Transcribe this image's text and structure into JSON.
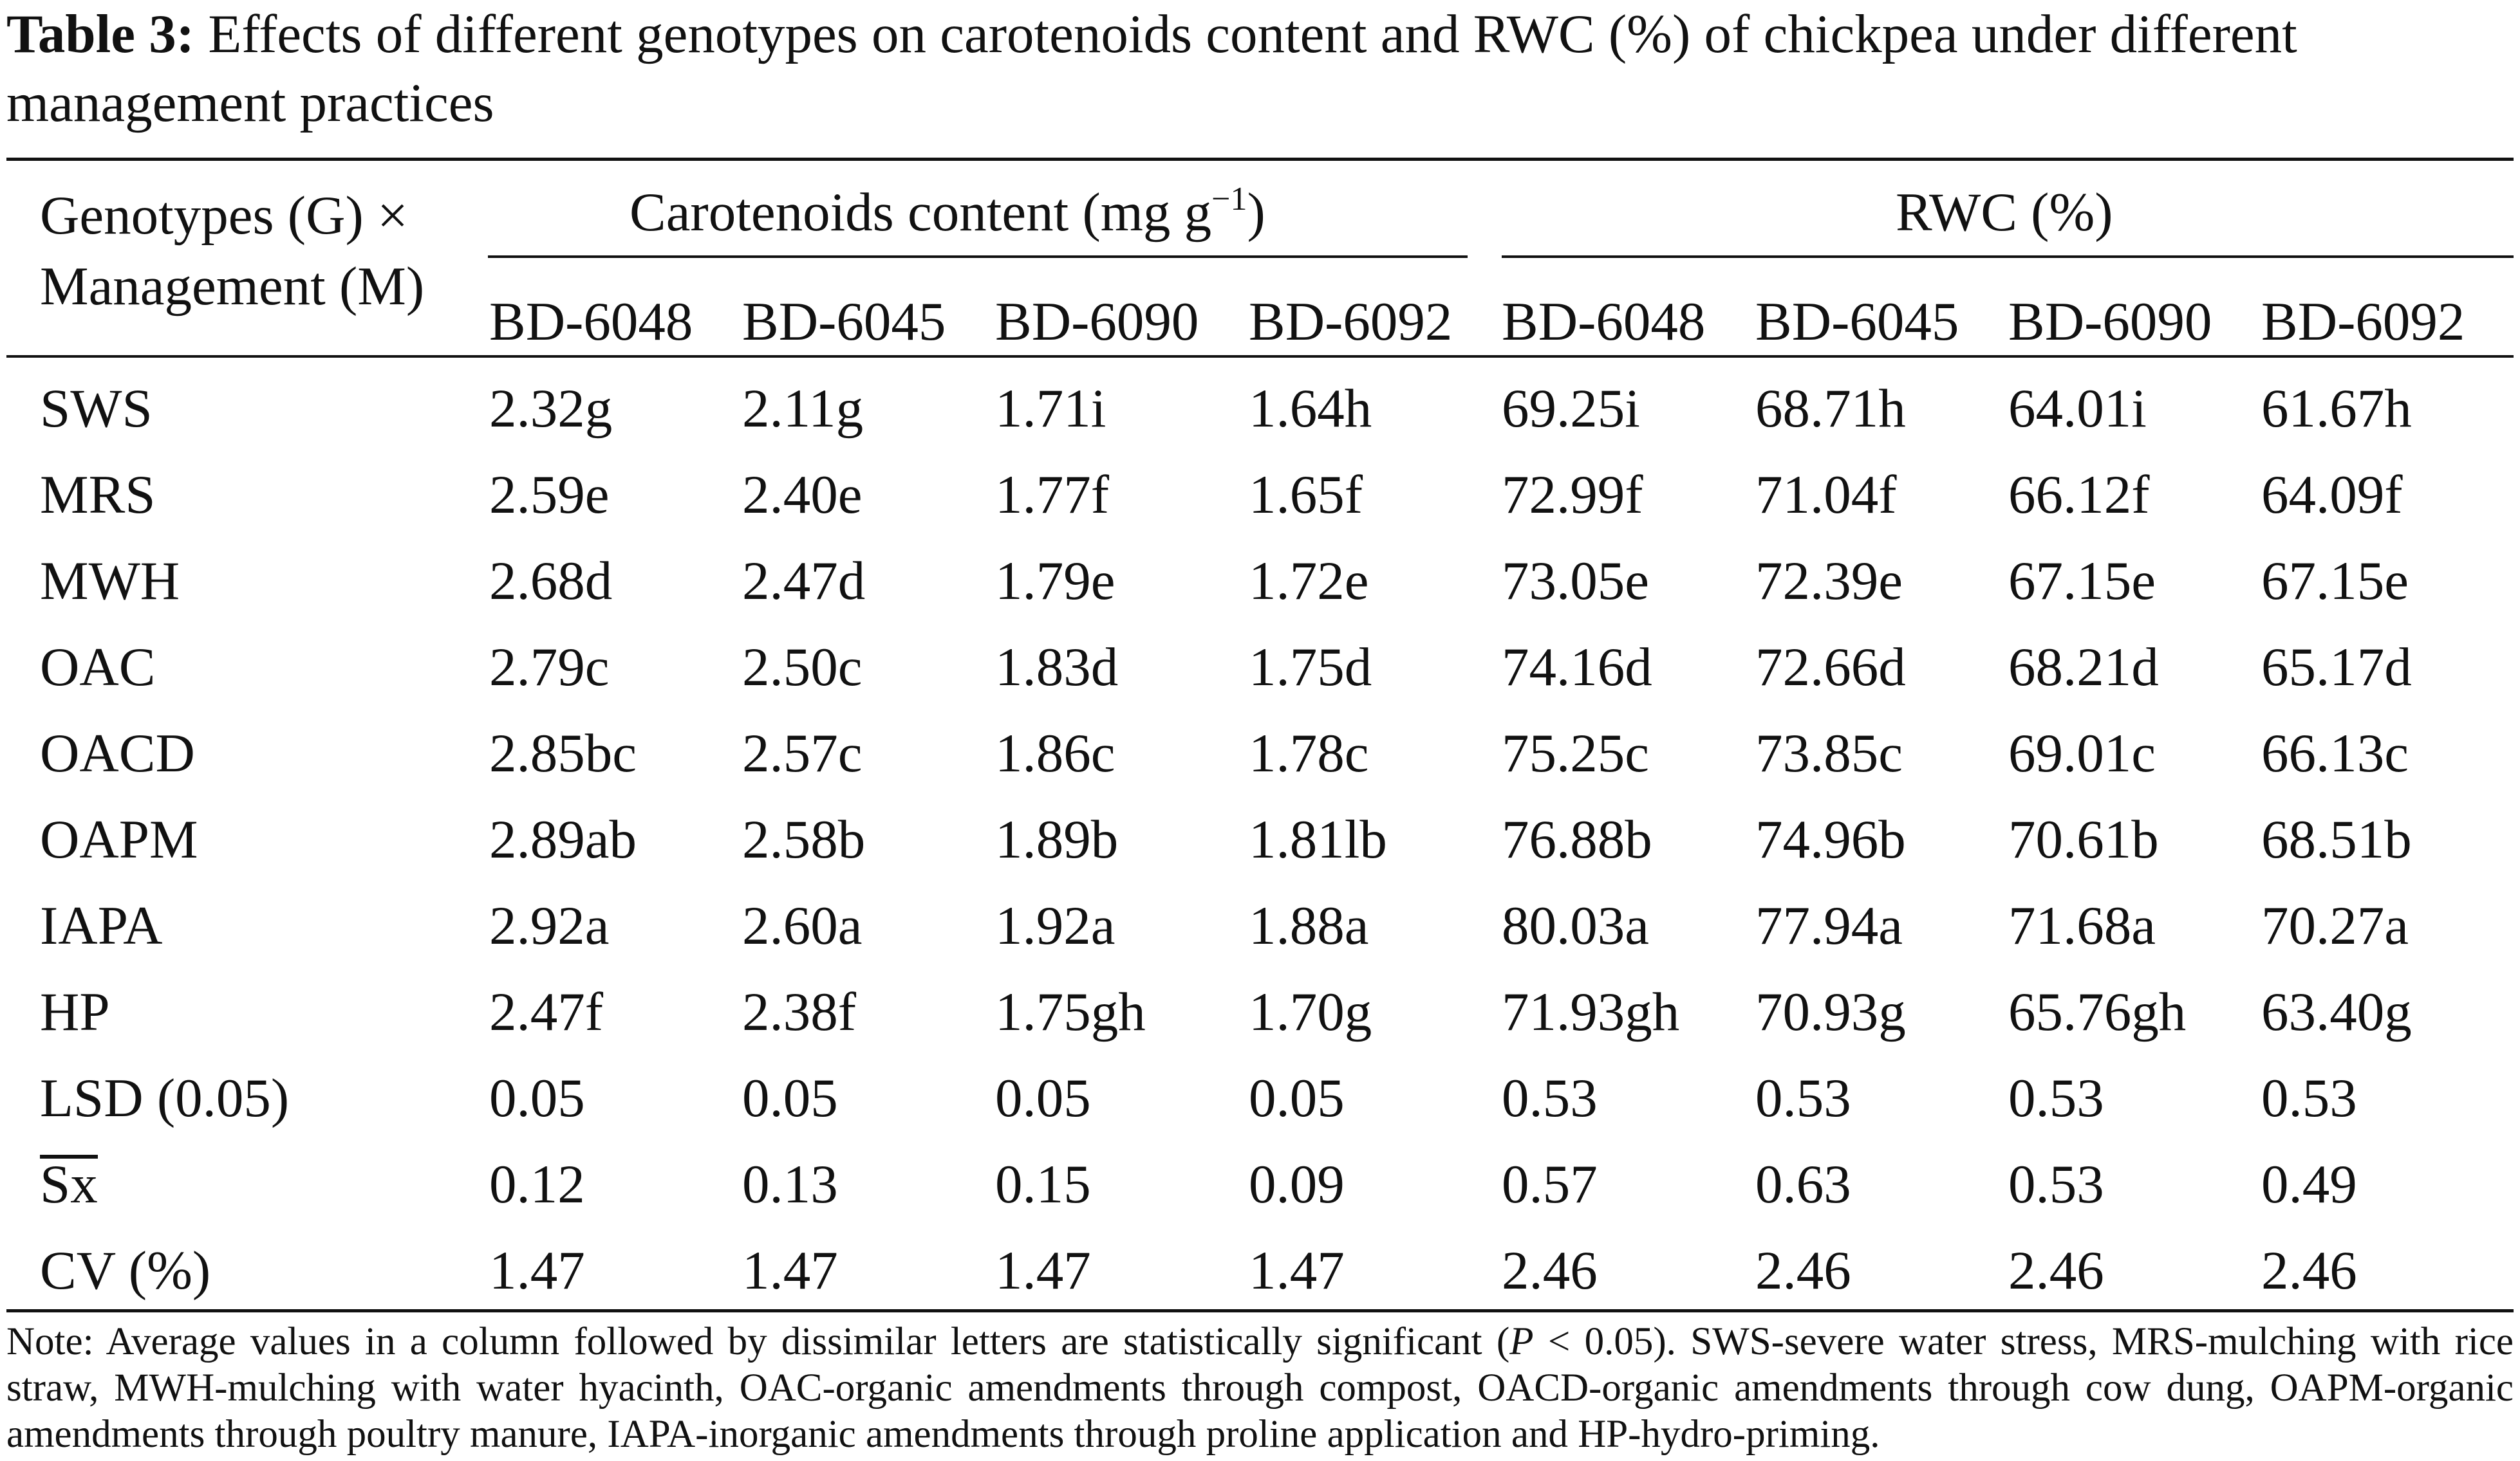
{
  "caption": {
    "label": "Table 3:",
    "text": "Effects of different genotypes on carotenoids content and RWC (%) of chickpea under different management practices"
  },
  "header": {
    "stub_line1": "Genotypes (G) ×",
    "stub_line2": "Management (M)",
    "group1": "Carotenoids content (mg g",
    "group1_sup": "−1",
    "group1_close": ")",
    "group2": "RWC (%)",
    "genotypes": [
      "BD-6048",
      "BD-6045",
      "BD-6090",
      "BD-6092",
      "BD-6048",
      "BD-6045",
      "BD-6090",
      "BD-6092"
    ]
  },
  "rows": [
    {
      "label": "SWS",
      "values": [
        "2.32g",
        "2.11g",
        "1.71i",
        "1.64h",
        "69.25i",
        "68.71h",
        "64.01i",
        "61.67h"
      ]
    },
    {
      "label": "MRS",
      "values": [
        "2.59e",
        "2.40e",
        "1.77f",
        "1.65f",
        "72.99f",
        "71.04f",
        "66.12f",
        "64.09f"
      ]
    },
    {
      "label": "MWH",
      "values": [
        "2.68d",
        "2.47d",
        "1.79e",
        "1.72e",
        "73.05e",
        "72.39e",
        "67.15e",
        "67.15e"
      ]
    },
    {
      "label": "OAC",
      "values": [
        "2.79c",
        "2.50c",
        "1.83d",
        "1.75d",
        "74.16d",
        "72.66d",
        "68.21d",
        "65.17d"
      ]
    },
    {
      "label": "OACD",
      "values": [
        "2.85bc",
        "2.57c",
        "1.86c",
        "1.78c",
        "75.25c",
        "73.85c",
        "69.01c",
        "66.13c"
      ]
    },
    {
      "label": "OAPM",
      "values": [
        "2.89ab",
        "2.58b",
        "1.89b",
        "1.81lb",
        "76.88b",
        "74.96b",
        "70.61b",
        "68.51b"
      ]
    },
    {
      "label": "IAPA",
      "values": [
        "2.92a",
        "2.60a",
        "1.92a",
        "1.88a",
        "80.03a",
        "77.94a",
        "71.68a",
        "70.27a"
      ]
    },
    {
      "label": "HP",
      "values": [
        "2.47f",
        "2.38f",
        "1.75gh",
        "1.70g",
        "71.93gh",
        "70.93g",
        "65.76gh",
        "63.40g"
      ]
    },
    {
      "label": "LSD (0.05)",
      "values": [
        "0.05",
        "0.05",
        "0.05",
        "0.05",
        "0.53",
        "0.53",
        "0.53",
        "0.53"
      ]
    },
    {
      "label": "Sx",
      "overline": true,
      "values": [
        "0.12",
        "0.13",
        "0.15",
        "0.09",
        "0.57",
        "0.63",
        "0.53",
        "0.49"
      ]
    },
    {
      "label": "CV (%)",
      "values": [
        "1.47",
        "1.47",
        "1.47",
        "1.47",
        "2.46",
        "2.46",
        "2.46",
        "2.46"
      ]
    }
  ],
  "note": {
    "before_p": "Note: Average values in a column followed by dissimilar letters are statistically significant (",
    "p": "P",
    "after_p": " < 0.05). SWS-severe water stress, MRS-mulching with rice straw, MWH-mulching with water hyacinth, OAC-organic amendments through compost, OACD-organic amendments through cow dung, OAPM-organic amendments through poultry manure, IAPA-inorganic amendments through proline application and HP-hydro-priming."
  }
}
